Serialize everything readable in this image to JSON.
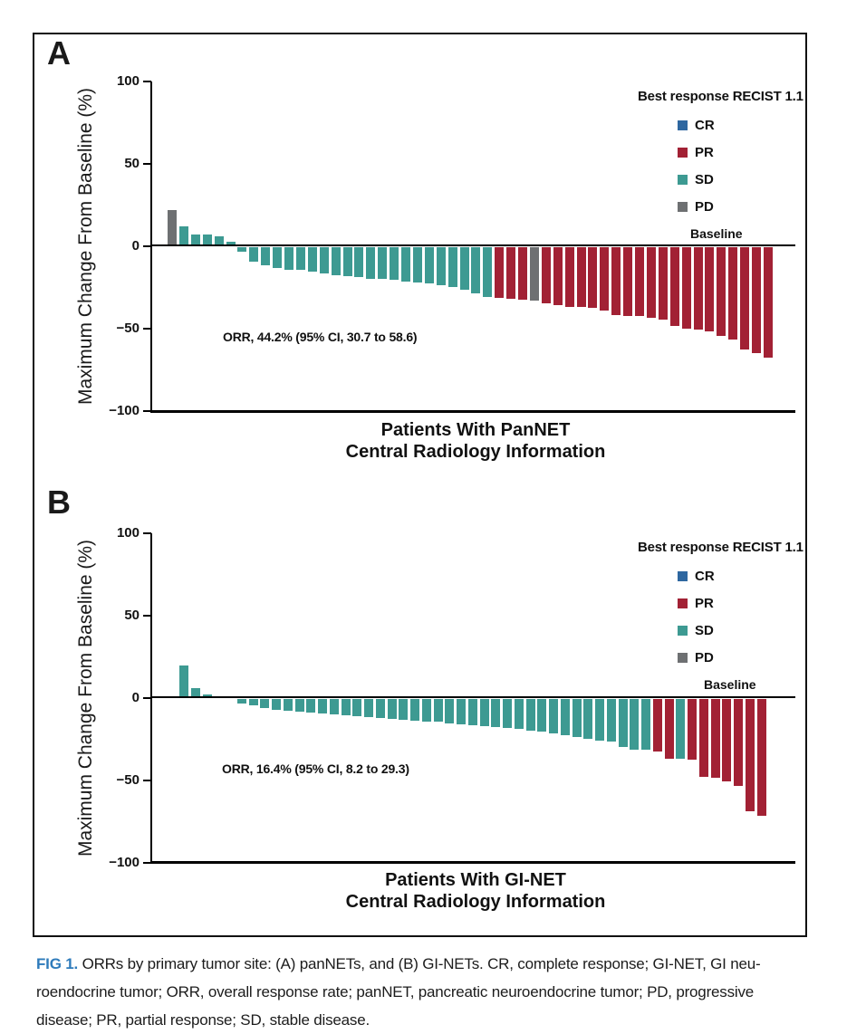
{
  "colors": {
    "CR": "#2E67A0",
    "PR": "#A22134",
    "SD": "#3D9A92",
    "PD": "#6E7072",
    "axis": "#000000",
    "caption_accent": "#2E7BBB"
  },
  "chart_data": [
    {
      "type": "bar",
      "subtype": "waterfall",
      "panel_label": "A",
      "ylabel": "Maximum Change From Baseline (%)",
      "ylim": [
        -100,
        100
      ],
      "yticks": [
        100,
        50,
        0,
        -50,
        -100
      ],
      "grid": false,
      "baseline_label": "Baseline",
      "annotation": "ORR, 44.2% (95% CI, 30.7 to 58.6)",
      "xlabel_line1": "Patients With PanNET",
      "xlabel_line2": "Central Radiology Information",
      "legend": {
        "title": "Best response RECIST 1.1",
        "entries": [
          "CR",
          "PR",
          "SD",
          "PD"
        ],
        "position": "top-right"
      },
      "values": [
        22,
        12,
        7,
        7,
        6,
        2.5,
        -3,
        -9,
        -11,
        -12.5,
        -13.5,
        -14,
        -15,
        -16,
        -17,
        -17.5,
        -18,
        -19,
        -19.5,
        -20,
        -21,
        -21.5,
        -22,
        -23,
        -24,
        -26,
        -28,
        -30,
        -31,
        -31.5,
        -32,
        -32.5,
        -34,
        -35,
        -36,
        -36.5,
        -37,
        -38.5,
        -41,
        -41.5,
        -42,
        -43,
        -44,
        -48,
        -49.5,
        -50,
        -51,
        -54,
        -56,
        -62,
        -64.5,
        -67
      ],
      "responses": [
        "PD",
        "SD",
        "SD",
        "SD",
        "SD",
        "SD",
        "SD",
        "SD",
        "SD",
        "SD",
        "SD",
        "SD",
        "SD",
        "SD",
        "SD",
        "SD",
        "SD",
        "SD",
        "SD",
        "SD",
        "SD",
        "SD",
        "SD",
        "SD",
        "SD",
        "SD",
        "SD",
        "SD",
        "PR",
        "PR",
        "PR",
        "PD",
        "PR",
        "PR",
        "PR",
        "PR",
        "PR",
        "PR",
        "PR",
        "PR",
        "PR",
        "PR",
        "PR",
        "PR",
        "PR",
        "PR",
        "PR",
        "PR",
        "PR",
        "PR",
        "PR",
        "PR"
      ]
    },
    {
      "type": "bar",
      "subtype": "waterfall",
      "panel_label": "B",
      "ylabel": "Maximum Change From Baseline (%)",
      "ylim": [
        -100,
        100
      ],
      "yticks": [
        100,
        50,
        0,
        -50,
        -100
      ],
      "grid": false,
      "baseline_label": "Baseline",
      "annotation": "ORR, 16.4% (95% CI, 8.2 to 29.3)",
      "xlabel_line1": "Patients With GI-NET",
      "xlabel_line2": "Central Radiology Information",
      "legend": {
        "title": "Best response RECIST 1.1",
        "entries": [
          "CR",
          "PR",
          "SD",
          "PD"
        ],
        "position": "top-right"
      },
      "values": [
        20,
        6,
        2,
        1,
        0,
        -2.5,
        -4,
        -5.5,
        -6.5,
        -7,
        -7.5,
        -8,
        -9,
        -9.5,
        -10,
        -10.5,
        -11,
        -11.5,
        -12,
        -12.5,
        -13,
        -13.5,
        -14,
        -15,
        -15.5,
        -16,
        -16.5,
        -17,
        -17.5,
        -18,
        -19,
        -20,
        -21,
        -22,
        -23,
        -24,
        -25,
        -26,
        -29,
        -30.5,
        -30.5,
        -32,
        -36,
        -36,
        -37,
        -47,
        -48,
        -50,
        -53,
        -68,
        -71
      ],
      "responses": [
        "SD",
        "SD",
        "SD",
        "SD",
        "SD",
        "SD",
        "SD",
        "SD",
        "SD",
        "SD",
        "SD",
        "SD",
        "SD",
        "SD",
        "SD",
        "SD",
        "SD",
        "SD",
        "SD",
        "SD",
        "SD",
        "SD",
        "SD",
        "SD",
        "SD",
        "SD",
        "SD",
        "SD",
        "SD",
        "SD",
        "SD",
        "SD",
        "SD",
        "SD",
        "SD",
        "SD",
        "SD",
        "SD",
        "SD",
        "SD",
        "SD",
        "PR",
        "PR",
        "SD",
        "PR",
        "PR",
        "PR",
        "PR",
        "PR",
        "PR",
        "PR"
      ]
    }
  ],
  "caption": {
    "prefix": "FIG 1.",
    "lines": [
      "ORRs by primary tumor site: (A) panNETs, and (B) GI-NETs. CR, complete response; GI-NET, GI neu-",
      "roendocrine tumor; ORR, overall response rate; panNET, pancreatic neuroendocrine tumor; PD, progressive",
      "disease; PR, partial response; SD, stable disease."
    ]
  }
}
